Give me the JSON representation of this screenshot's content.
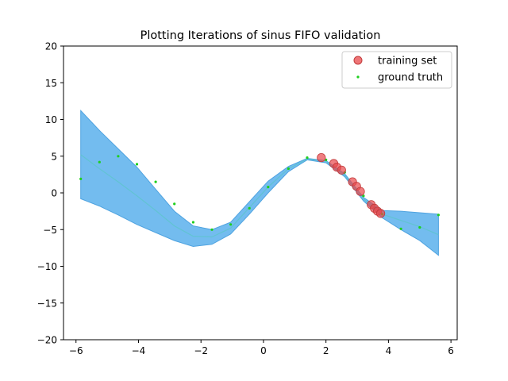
{
  "chart_data": {
    "type": "scatter",
    "title": "Plotting Iterations of sinus FIFO validation",
    "xlabel": "",
    "ylabel": "",
    "xlim": [
      -6.4,
      6.2
    ],
    "ylim": [
      -20,
      20
    ],
    "xticks": [
      -6,
      -4,
      -2,
      0,
      2,
      4,
      6
    ],
    "yticks": [
      -20,
      -15,
      -10,
      -5,
      0,
      5,
      10,
      15,
      20
    ],
    "grid": false,
    "legend_position": "top-right",
    "colors": {
      "band_fill": "#6cb8ee",
      "band_edge": "#4fa3e0",
      "training": "#e8474a",
      "ground_truth": "#1ecf1e",
      "mean_line": "#55c8c0"
    },
    "series": [
      {
        "name": "training set",
        "marker": "circle",
        "x": [
          1.85,
          2.25,
          2.35,
          2.5,
          2.85,
          2.98,
          3.1,
          3.45,
          3.55,
          3.65,
          3.75
        ],
        "y": [
          4.8,
          4.0,
          3.5,
          3.1,
          1.5,
          0.9,
          0.2,
          -1.6,
          -2.1,
          -2.5,
          -2.8
        ]
      },
      {
        "name": "ground truth",
        "marker": "dot",
        "x": [
          -5.85,
          -5.25,
          -4.65,
          -4.05,
          -3.45,
          -2.85,
          -2.25,
          -1.65,
          -1.05,
          -0.45,
          0.15,
          0.8,
          1.4,
          2.0,
          2.6,
          3.2,
          3.8,
          4.4,
          5.0,
          5.6
        ],
        "y": [
          1.9,
          4.2,
          5.0,
          3.9,
          1.5,
          -1.5,
          -4.0,
          -5.0,
          -4.3,
          -2.1,
          0.8,
          3.3,
          4.8,
          4.5,
          2.8,
          -0.4,
          -2.9,
          -4.9,
          -4.7,
          -3.0
        ]
      }
    ],
    "band": {
      "x": [
        -5.85,
        -5.25,
        -4.65,
        -4.05,
        -3.45,
        -2.85,
        -2.25,
        -1.65,
        -1.05,
        -0.45,
        0.15,
        0.8,
        1.4,
        2.0,
        2.6,
        3.2,
        3.8,
        4.4,
        5.0,
        5.6
      ],
      "upper": [
        11.2,
        8.5,
        6.0,
        3.5,
        0.5,
        -2.5,
        -4.5,
        -5.0,
        -4.0,
        -1.2,
        1.6,
        3.6,
        4.7,
        4.4,
        2.6,
        -0.6,
        -2.4,
        -2.5,
        -2.7,
        -2.9
      ],
      "lower": [
        -0.8,
        -1.8,
        -3.0,
        -4.3,
        -5.4,
        -6.5,
        -7.3,
        -7.0,
        -5.6,
        -2.9,
        0.0,
        2.9,
        4.5,
        4.1,
        2.2,
        -1.1,
        -3.4,
        -5.0,
        -6.5,
        -8.5
      ],
      "mean": [
        5.2,
        3.3,
        1.5,
        -0.4,
        -2.4,
        -4.5,
        -5.9,
        -6.0,
        -4.8,
        -2.0,
        0.8,
        3.3,
        4.6,
        4.3,
        2.4,
        -0.85,
        -2.9,
        -3.75,
        -4.6,
        -5.7
      ]
    }
  },
  "legend": {
    "training_label": "training set",
    "ground_truth_label": "ground truth"
  }
}
